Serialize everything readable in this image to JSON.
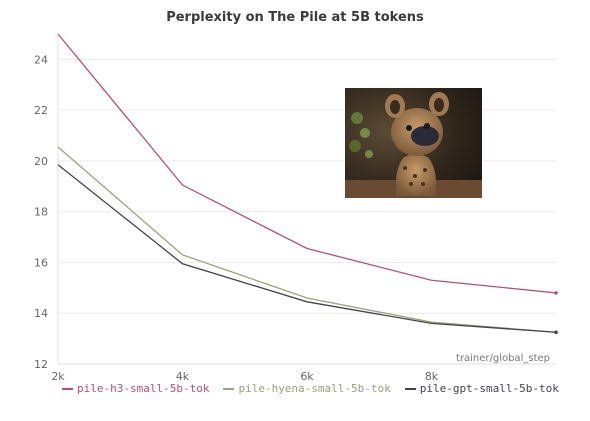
{
  "chart_data": {
    "type": "line",
    "title": "Perplexity on The Pile at 5B tokens",
    "xlabel": "trainer/global_step",
    "ylabel": "",
    "x": [
      2000,
      4000,
      6000,
      8000,
      10000
    ],
    "xlim": [
      2000,
      10000
    ],
    "ylim": [
      12,
      25
    ],
    "xticks": [
      2000,
      4000,
      6000,
      8000
    ],
    "xtick_labels": [
      "2k",
      "4k",
      "6k",
      "8k"
    ],
    "yticks": [
      12,
      14,
      16,
      18,
      20,
      22,
      24
    ],
    "yticks_labels": [
      "12",
      "14",
      "16",
      "18",
      "20",
      "22",
      "24"
    ],
    "grid": "horizontal",
    "legend_position": "bottom",
    "series": [
      {
        "name": "pile-h3-small-5b-tok",
        "color": "#b5506e",
        "values": [
          25.0,
          19.05,
          16.55,
          15.3,
          14.8
        ]
      },
      {
        "name": "pile-hyena-small-5b-tok",
        "color": "#9ea080",
        "values": [
          20.55,
          16.3,
          14.6,
          13.65,
          13.25
        ]
      },
      {
        "name": "pile-gpt-small-5b-tok",
        "color": "#44444c",
        "values": [
          19.85,
          15.95,
          14.45,
          13.6,
          13.25
        ]
      }
    ]
  }
}
